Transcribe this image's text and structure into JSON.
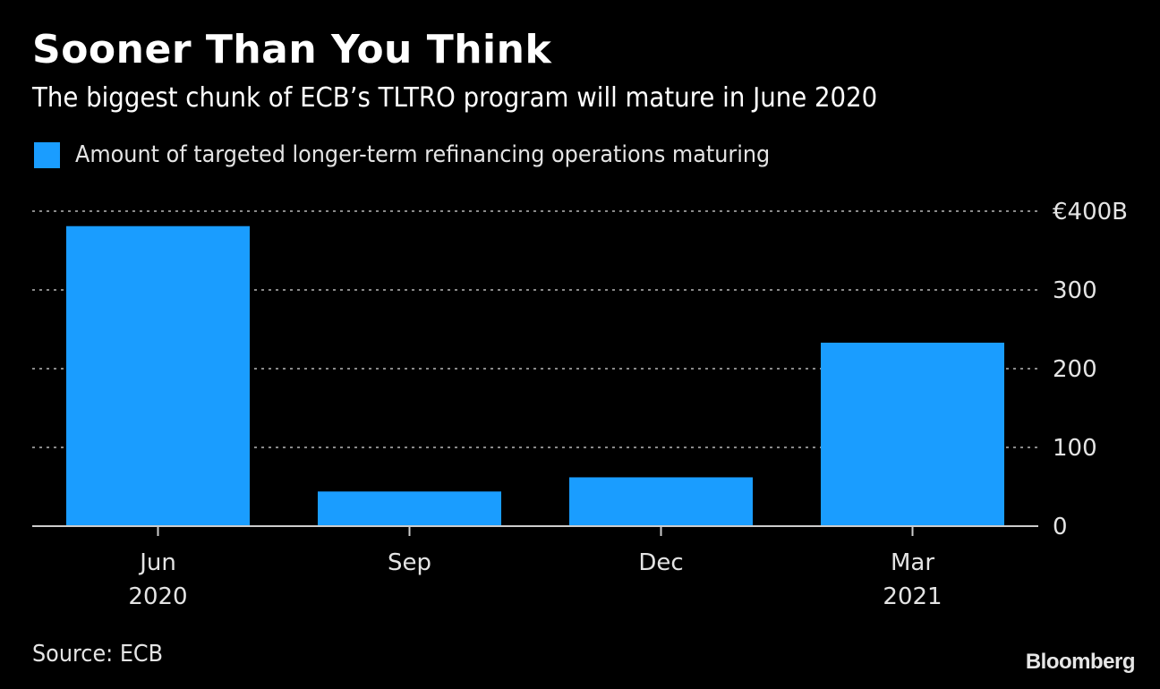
{
  "header": {
    "title": "Sooner Than You Think",
    "subtitle": "The biggest chunk of ECB’s TLTRO program will mature in June 2020"
  },
  "footer": {
    "source": "Source: ECB",
    "brand": "Bloomberg"
  },
  "colors": {
    "background": "#000000",
    "bar": "#1a9dff",
    "gridline": "#8a8a8a",
    "axis": "#cccccc",
    "text": "#e4e4e4"
  },
  "chart_data": {
    "type": "bar",
    "title": "Sooner Than You Think",
    "subtitle": "The biggest chunk of ECB’s TLTRO program will mature in June 2020",
    "categories": [
      "Jun",
      "Sep",
      "Dec",
      "Mar"
    ],
    "category_sublabels": [
      "2020",
      "",
      "",
      "2021"
    ],
    "series": [
      {
        "name": "Amount of targeted longer-term refinancing operations maturing",
        "color": "#1a9dff",
        "values": [
          381,
          44,
          62,
          233
        ]
      }
    ],
    "xlabel": "",
    "ylabel": "",
    "ylim": [
      0,
      400
    ],
    "yticks": [
      0,
      100,
      200,
      300,
      400
    ],
    "ytick_labels": [
      "0",
      "100",
      "200",
      "300",
      "€400B"
    ],
    "y_axis_side": "right",
    "grid": true,
    "grid_style": "dotted",
    "legend": "top-left"
  }
}
